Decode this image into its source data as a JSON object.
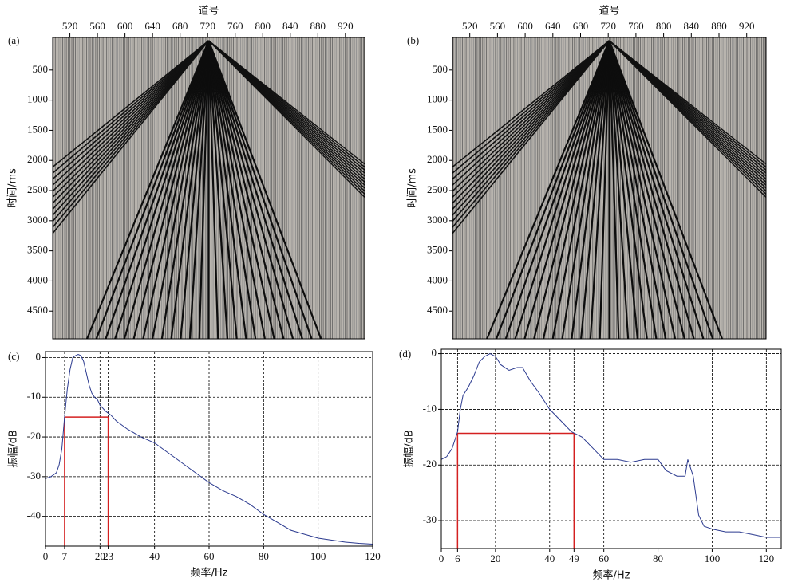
{
  "chart_data": [
    {
      "type": "seismic",
      "panel_label": "(a)",
      "xlabel": "道号",
      "ylabel": "时间/ms",
      "xlim": [
        495,
        948
      ],
      "xticks": [
        520,
        560,
        600,
        640,
        680,
        720,
        760,
        800,
        840,
        880,
        920
      ],
      "ylim": [
        -40,
        4960
      ],
      "yticks": [
        500,
        1000,
        1500,
        2000,
        2500,
        3000,
        3500,
        4000,
        4500
      ]
    },
    {
      "type": "seismic",
      "panel_label": "(b)",
      "xlabel": "道号",
      "ylabel": "时间/ms",
      "xlim": [
        495,
        948
      ],
      "xticks": [
        520,
        560,
        600,
        640,
        680,
        720,
        760,
        800,
        840,
        880,
        920
      ],
      "ylim": [
        -40,
        4960
      ],
      "yticks": [
        500,
        1000,
        1500,
        2000,
        2500,
        3000,
        3500,
        4000,
        4500
      ]
    },
    {
      "type": "line",
      "panel_label": "(c)",
      "xlabel": "频率/Hz",
      "ylabel": "振幅/dB",
      "grid": true,
      "xlim": [
        0,
        120
      ],
      "xticks": [
        0,
        7,
        20,
        23,
        40,
        60,
        80,
        100,
        120
      ],
      "ylim": [
        -47.5,
        1.5
      ],
      "yticks": [
        0,
        -10,
        -20,
        -30,
        -40
      ],
      "color": "#2b3a8f",
      "x": [
        0,
        2,
        4,
        5,
        6,
        7,
        8,
        9,
        10,
        11,
        12,
        13,
        14,
        15,
        16,
        17,
        18,
        19,
        20,
        22,
        24,
        26,
        28,
        30,
        35,
        40,
        45,
        50,
        55,
        60,
        65,
        70,
        75,
        80,
        85,
        90,
        95,
        100,
        105,
        110,
        115,
        120
      ],
      "values": [
        -30.5,
        -30,
        -29,
        -27,
        -23,
        -15,
        -8,
        -3,
        0,
        0.5,
        0.8,
        0.5,
        -1,
        -4,
        -7,
        -9,
        -10,
        -10.5,
        -12,
        -13.5,
        -14.5,
        -16,
        -17,
        -18,
        -20,
        -21.5,
        -24,
        -26.5,
        -29,
        -31.5,
        -33.5,
        -35,
        -37,
        -39.5,
        -41.5,
        -43.5,
        -44.5,
        -45.5,
        -46,
        -46.5,
        -46.8,
        -47
      ],
      "band": {
        "x": [
          7,
          23
        ],
        "y": -15,
        "color": "#d42020"
      }
    },
    {
      "type": "line",
      "panel_label": "(d)",
      "xlabel": "频率/Hz",
      "ylabel": "振幅/dB",
      "grid": true,
      "xlim": [
        0,
        125.5
      ],
      "xticks": [
        0,
        6,
        20,
        40,
        49,
        60,
        80,
        100,
        120
      ],
      "ylim": [
        -35,
        0.8
      ],
      "yticks": [
        0,
        -10,
        -20,
        -30
      ],
      "color": "#2b3a8f",
      "x": [
        0,
        2,
        4,
        6,
        7,
        8,
        10,
        12,
        14,
        16,
        18,
        20,
        22,
        25,
        28,
        30,
        33,
        36,
        40,
        44,
        48,
        52,
        56,
        60,
        65,
        70,
        75,
        80,
        83,
        87,
        90,
        91,
        93,
        95,
        97,
        100,
        105,
        110,
        115,
        120,
        125
      ],
      "values": [
        -19,
        -18.5,
        -17,
        -14,
        -10,
        -7.5,
        -6,
        -4,
        -1.5,
        -0.5,
        0,
        -0.5,
        -2,
        -3,
        -2.5,
        -2.5,
        -5,
        -7,
        -10,
        -12,
        -14,
        -15,
        -17,
        -19,
        -19,
        -19.5,
        -19,
        -19,
        -21,
        -22,
        -22,
        -19,
        -22,
        -29,
        -31,
        -31.5,
        -32,
        -32,
        -32.5,
        -33,
        -33
      ],
      "band": {
        "x": [
          6,
          49
        ],
        "y": -14.3,
        "color": "#d42020"
      }
    }
  ]
}
